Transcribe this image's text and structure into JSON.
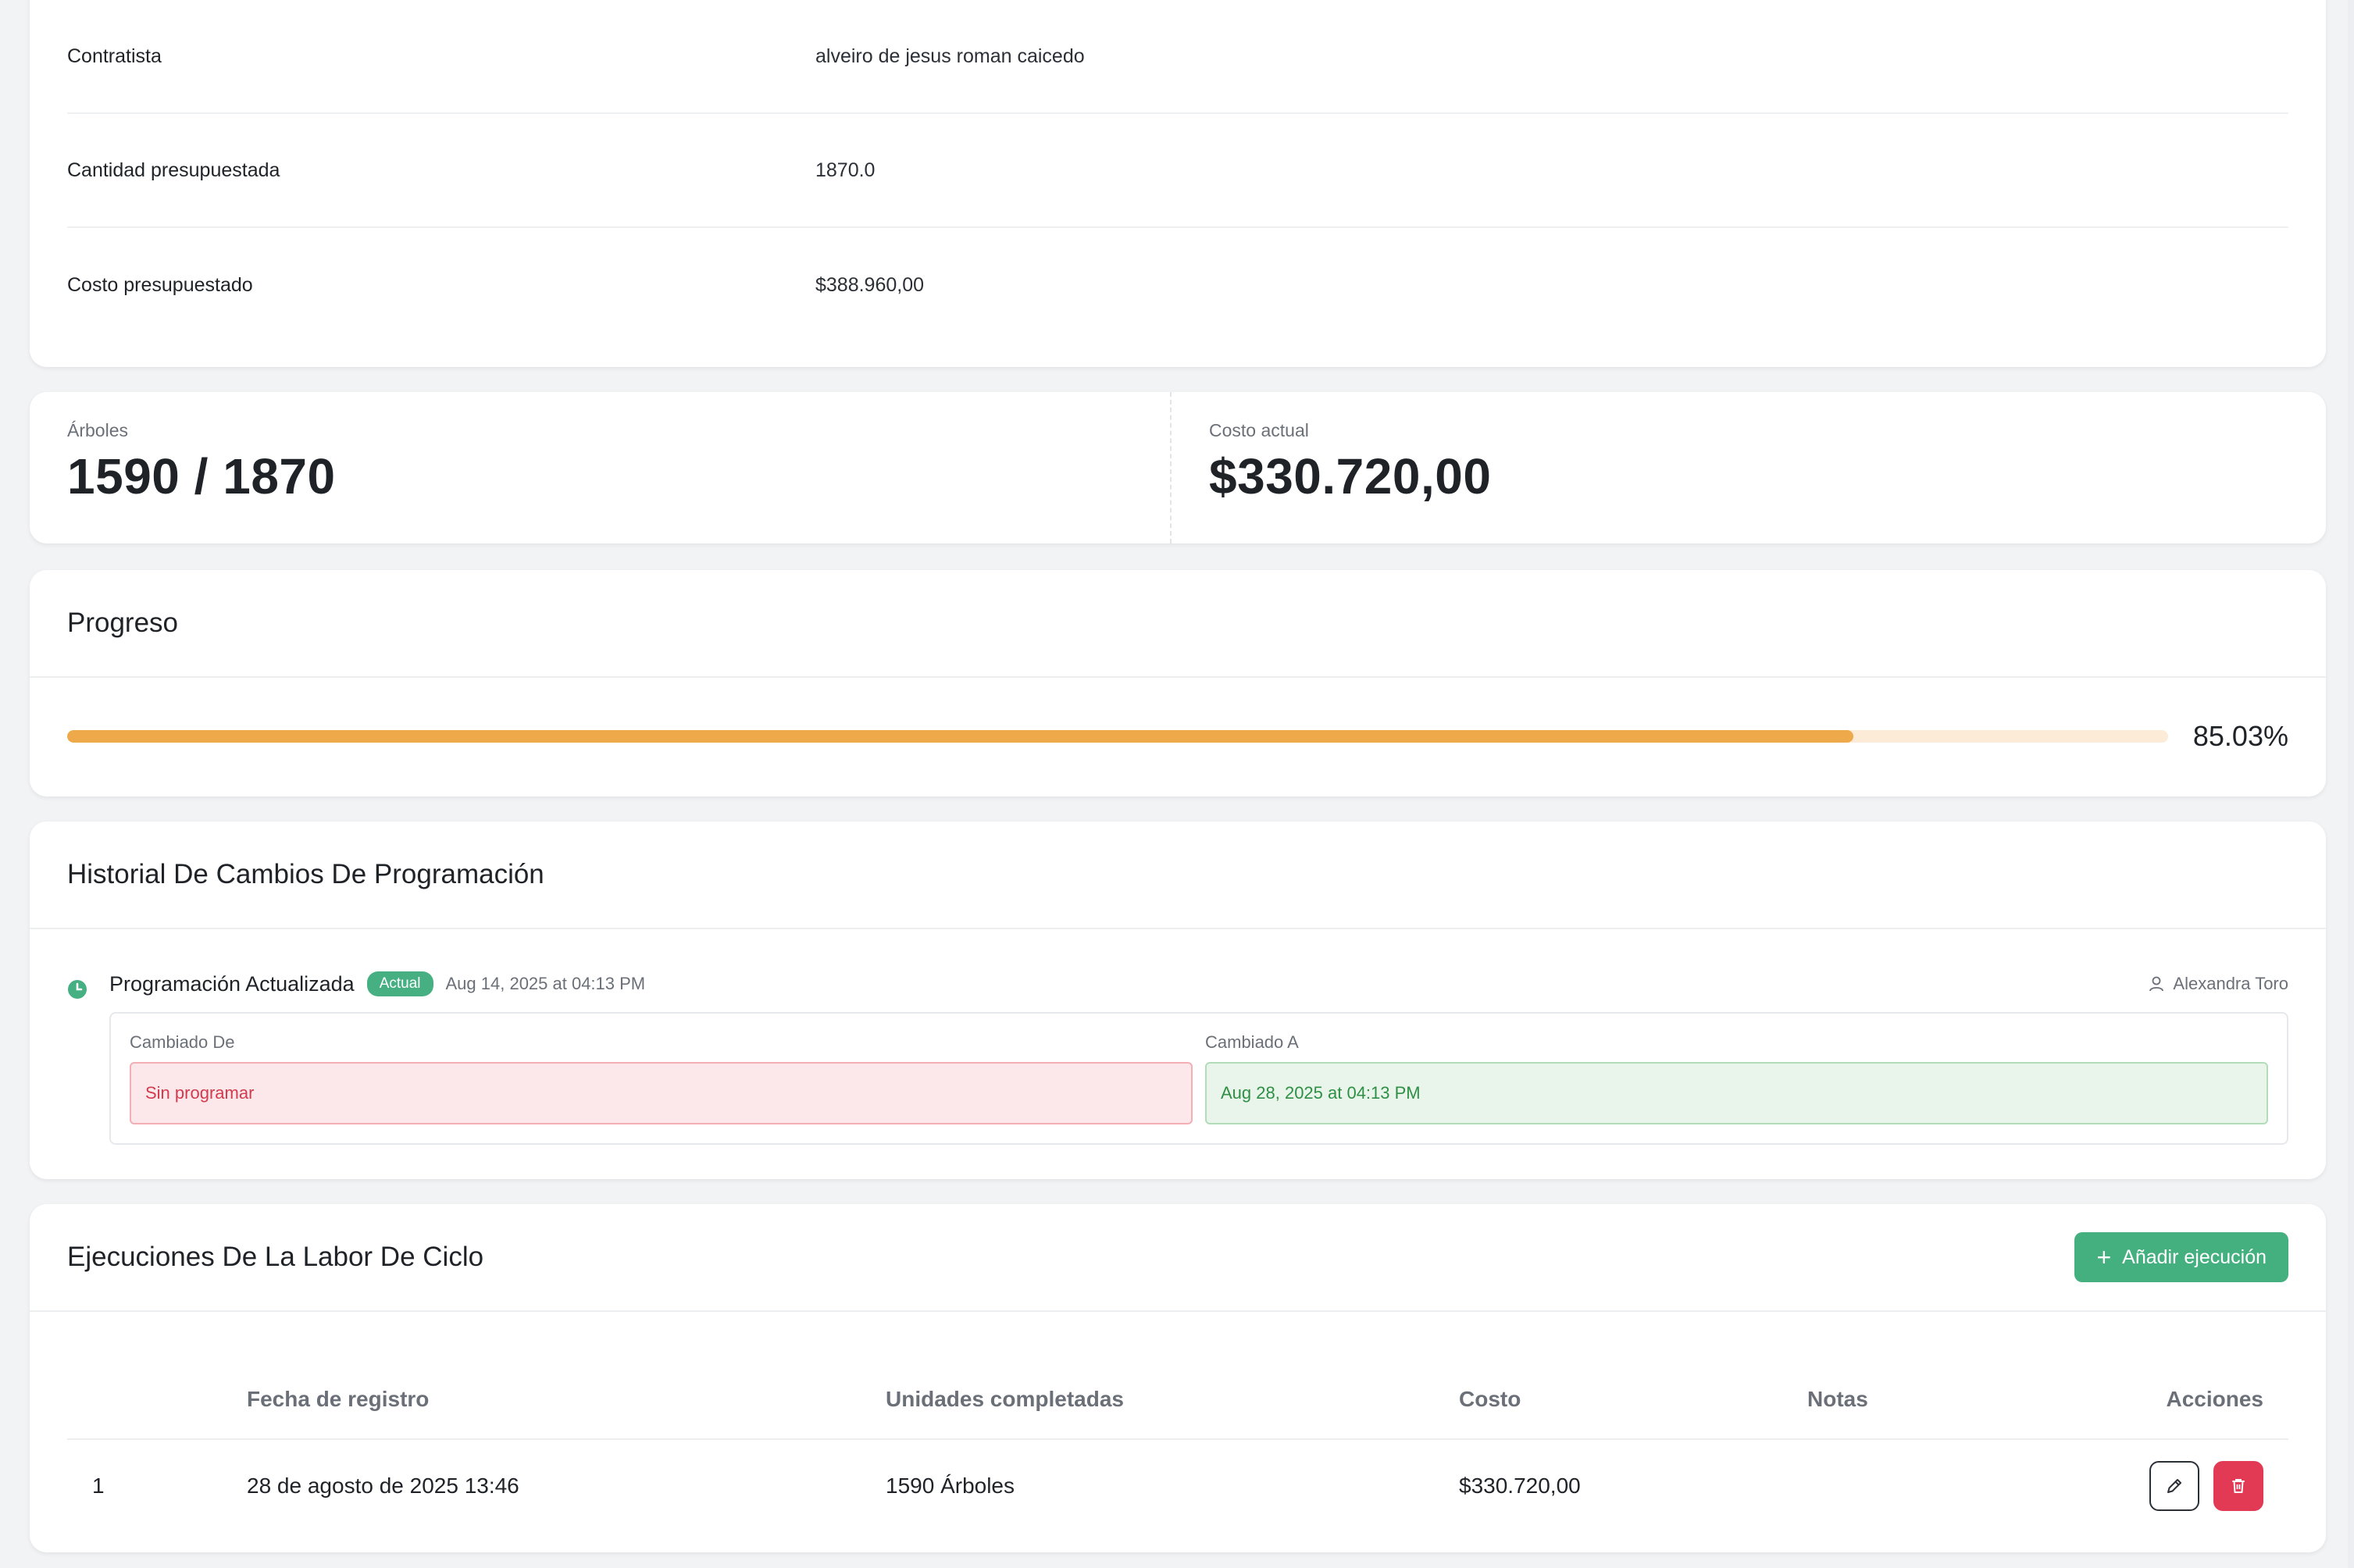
{
  "details": {
    "rows": [
      {
        "label": "Contratista",
        "value": "alveiro de jesus roman caicedo"
      },
      {
        "label": "Cantidad presupuestada",
        "value": "1870.0"
      },
      {
        "label": "Costo presupuestado",
        "value": "$388.960,00"
      }
    ]
  },
  "stats": {
    "trees_label": "Árboles",
    "trees_value": "1590 / 1870",
    "cost_label": "Costo actual",
    "cost_value": "$330.720,00"
  },
  "progress": {
    "title": "Progreso",
    "percent": 85.03,
    "percent_text": "85.03%",
    "color": "#eda94a",
    "track_color": "#fcecd7"
  },
  "history": {
    "title": "Historial De Cambios De Programación",
    "entry": {
      "title": "Programación Actualizada",
      "badge": "Actual",
      "date": "Aug 14, 2025 at 04:13 PM",
      "user": "Alexandra Toro",
      "from_label": "Cambiado De",
      "from_value": "Sin programar",
      "to_label": "Cambiado A",
      "to_value": "Aug 28, 2025 at 04:13 PM"
    }
  },
  "executions": {
    "title": "Ejecuciones De La Labor De Ciclo",
    "add_label": "Añadir ejecución",
    "columns": {
      "date": "Fecha de registro",
      "units": "Unidades completadas",
      "cost": "Costo",
      "notes": "Notas",
      "actions": "Acciones"
    },
    "rows": [
      {
        "num": "1",
        "date": "28 de agosto de 2025 13:46",
        "units": "1590 Árboles",
        "cost": "$330.720,00",
        "notes": ""
      }
    ]
  },
  "colors": {
    "accent_green": "#45b07f",
    "danger_red": "#e23a55"
  }
}
